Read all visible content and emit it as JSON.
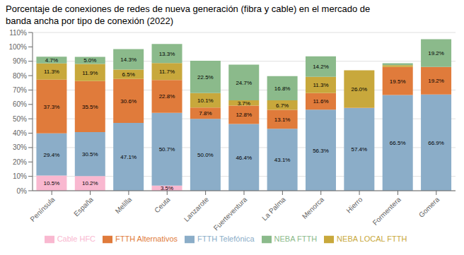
{
  "chart_data": {
    "type": "bar",
    "stacked": true,
    "data_labels": true,
    "grid": true,
    "legend": "bottom",
    "title": "Porcentaje de conexiones de redes de nueva generación (fibra y cable) en el mercado de",
    "subtitle": "banda ancha por tipo de conexión (2022)",
    "categories": [
      "Península",
      "España",
      "Melilla",
      "Ceuta",
      "Lanzarote",
      "Fuerteventura",
      "La Palma",
      "Menorca",
      "Hierro",
      "Formentera",
      "Gomera"
    ],
    "ylim": [
      0,
      110
    ],
    "yticks": [
      {
        "value": 0,
        "label": "0%"
      },
      {
        "value": 10,
        "label": "10%"
      },
      {
        "value": 20,
        "label": "20%"
      },
      {
        "value": 30,
        "label": "30%"
      },
      {
        "value": 40,
        "label": "40%"
      },
      {
        "value": 50,
        "label": "50%"
      },
      {
        "value": 60,
        "label": "60%"
      },
      {
        "value": 70,
        "label": "70%"
      },
      {
        "value": 80,
        "label": "80%"
      },
      {
        "value": 90,
        "label": "90%"
      },
      {
        "value": 100,
        "label": "100%"
      },
      {
        "value": 110,
        "label": "110%"
      }
    ],
    "series": [
      {
        "name": "Cable HFC",
        "color": "#f9b8d0",
        "values": [
          10.5,
          10.2,
          0.0,
          3.5,
          0.0,
          0.0,
          0.0,
          0.0,
          0.0,
          0.0,
          0.0
        ],
        "value_labels": [
          "10.5%",
          "10.2%",
          null,
          "3.5%",
          null,
          null,
          null,
          null,
          null,
          null,
          null
        ]
      },
      {
        "name": "FTTH Telefónica",
        "color": "#8badc8",
        "values": [
          29.4,
          30.5,
          47.1,
          50.7,
          50.0,
          46.4,
          43.1,
          56.3,
          57.4,
          66.5,
          66.9
        ],
        "value_labels": [
          "29.4%",
          "30.5%",
          "47.1%",
          "50.7%",
          "50.0%",
          "46.4%",
          "43.1%",
          "56.3%",
          "57.4%",
          "66.5%",
          "66.9%"
        ]
      },
      {
        "name": "FTTH Alternativos",
        "color": "#e07b3b",
        "values": [
          37.3,
          35.5,
          30.6,
          22.8,
          7.8,
          12.8,
          13.1,
          11.6,
          0.3,
          19.5,
          19.2
        ],
        "value_labels": [
          "37.3%",
          "35.5%",
          "30.6%",
          "22.8%",
          "7.8%",
          "12.8%",
          "13.1%",
          "11.6%",
          null,
          "19.5%",
          "19.2%"
        ]
      },
      {
        "name": "NEBA LOCAL FTTH",
        "color": "#c8a83c",
        "values": [
          11.3,
          11.9,
          6.5,
          11.7,
          10.1,
          3.7,
          6.7,
          11.3,
          26.0,
          1.3,
          0.0
        ],
        "value_labels": [
          "11.3%",
          "11.9%",
          "6.5%",
          "11.7%",
          "10.1%",
          "3.7%",
          "6.7%",
          "11.3%",
          "26.0%",
          null,
          null
        ]
      },
      {
        "name": "NEBA FTTH",
        "color": "#8bba8b",
        "values": [
          4.7,
          5.0,
          14.3,
          13.3,
          22.5,
          24.7,
          16.8,
          14.2,
          0.0,
          1.3,
          19.2
        ],
        "value_labels": [
          "4.7%",
          "5.0%",
          "14.3%",
          "13.3%",
          "22.5%",
          "24.7%",
          "16.8%",
          "14.2%",
          null,
          null,
          "19.2%"
        ]
      }
    ]
  }
}
